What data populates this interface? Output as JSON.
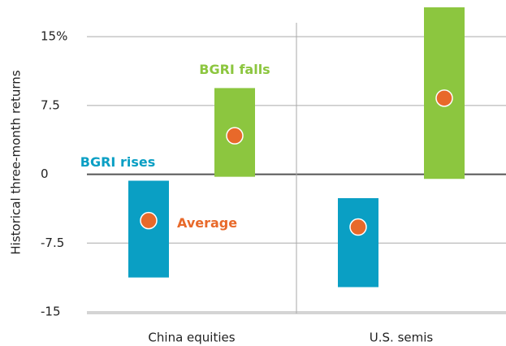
{
  "chart_data": {
    "type": "range-bar",
    "y_label": "Historical three-month returns",
    "categories": [
      "China equities",
      "U.S. semis"
    ],
    "series": [
      {
        "name": "BGRI rises",
        "color": "#0a9fc4",
        "low": [
          -11.25,
          -12.3
        ],
        "high": [
          -0.7,
          -2.6
        ],
        "average": [
          -5.05,
          -5.75
        ]
      },
      {
        "name": "BGRI falls",
        "color": "#8cc63f",
        "low": [
          -0.27,
          -0.5
        ],
        "high": [
          9.4,
          18.2
        ],
        "average": [
          4.2,
          8.3
        ]
      }
    ],
    "average_label": "Average",
    "average_color": "#e8692a",
    "ylim": [
      -15,
      19
    ],
    "yticks": [
      {
        "value": 15,
        "label": "15%"
      },
      7.5,
      0,
      -7.5,
      -15
    ],
    "grid": true
  }
}
